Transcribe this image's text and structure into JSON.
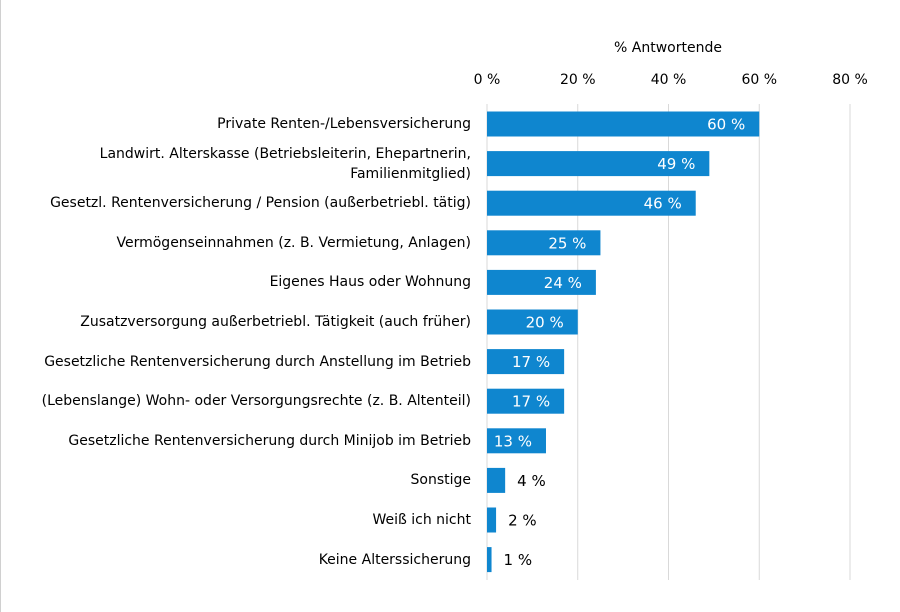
{
  "chart_data": {
    "type": "bar",
    "orientation": "horizontal",
    "x_label": "% Antwortende",
    "categories": [
      "Private Renten-/Lebensversicherung",
      "Landwirt. Alterskasse (Betriebsleiterin, Ehepartnerin, Familienmitglied)",
      "Gesetzl. Rentenversicherung / Pension (außerbetriebl. tätig)",
      "Vermögenseinnahmen (z. B. Vermietung, Anlagen)",
      "Eigenes Haus oder Wohnung",
      "Zusatzversorgung außerbetriebl. Tätigkeit (auch früher)",
      "Gesetzliche Rentenversicherung durch Anstellung im Betrieb",
      "(Lebenslange) Wohn- oder Versorgungsrechte (z. B. Altenteil)",
      "Gesetzliche Rentenversicherung durch Minijob im Betrieb",
      "Sonstige",
      "Weiß ich nicht",
      "Keine Alterssicherung"
    ],
    "values": [
      60,
      49,
      46,
      25,
      24,
      20,
      17,
      17,
      13,
      4,
      2,
      1
    ],
    "value_labels": [
      "60 %",
      "49 %",
      "46 %",
      "25 %",
      "24 %",
      "20 %",
      "17 %",
      "17 %",
      "13 %",
      "4 %",
      "2 %",
      "1 %"
    ],
    "color": "#0f86cf",
    "xlim": [
      0,
      80
    ],
    "xticks": [
      {
        "value": 0,
        "label": "0 %"
      },
      {
        "value": 20,
        "label": "20 %"
      },
      {
        "value": 40,
        "label": "40 %"
      },
      {
        "value": 60,
        "label": "60 %"
      },
      {
        "value": 80,
        "label": "80 %"
      }
    ],
    "grid": true
  }
}
